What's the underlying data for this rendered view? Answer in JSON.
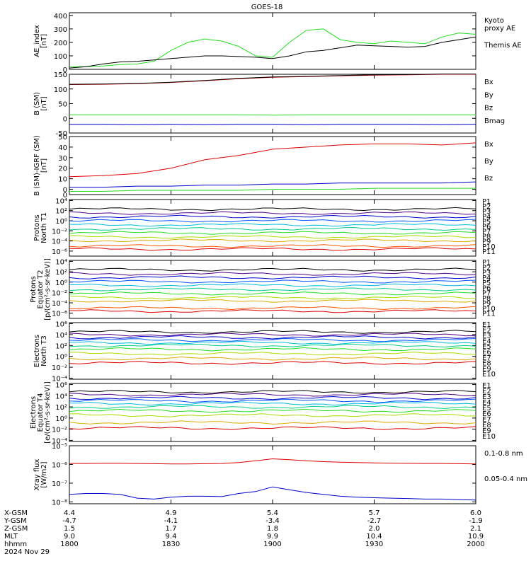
{
  "title": "GOES-18",
  "colors": {
    "green": "#22dd22",
    "black": "#000000",
    "red": "#dd0000",
    "blue": "#0000cc"
  },
  "chart_data": [
    {
      "type": "line",
      "id": "ae",
      "ylabel": "AE_index\n[nT]",
      "ylim": [
        0,
        420
      ],
      "yticks": [
        "0",
        "100",
        "200",
        "300",
        "400"
      ],
      "ytick_values": [
        0,
        100,
        200,
        300,
        400
      ],
      "x": [
        0,
        5,
        10,
        15,
        20,
        25,
        30,
        35,
        40,
        45,
        50,
        55,
        60,
        65,
        70,
        75,
        80,
        85,
        90,
        95,
        100,
        105,
        110,
        115,
        120
      ],
      "series": [
        {
          "name": "Kyoto\nproxy AE",
          "color": "#22dd22",
          "values": [
            20,
            20,
            25,
            35,
            40,
            60,
            140,
            200,
            225,
            210,
            170,
            100,
            90,
            200,
            290,
            300,
            220,
            200,
            190,
            210,
            200,
            190,
            240,
            270,
            260
          ]
        },
        {
          "name": "Themis AE",
          "color": "#000000",
          "values": [
            10,
            20,
            40,
            55,
            60,
            70,
            80,
            90,
            100,
            100,
            95,
            90,
            80,
            100,
            130,
            140,
            160,
            180,
            175,
            170,
            165,
            170,
            200,
            220,
            240
          ]
        }
      ]
    },
    {
      "type": "line",
      "id": "bsm",
      "ylabel": "B (SM)\n[nT]",
      "ylim": [
        -50,
        150
      ],
      "yticks": [
        "-50",
        "0",
        "50",
        "100",
        "150"
      ],
      "ytick_values": [
        -50,
        0,
        50,
        100,
        150
      ],
      "x": [
        0,
        10,
        20,
        30,
        40,
        50,
        60,
        70,
        80,
        90,
        100,
        110,
        120
      ],
      "series": [
        {
          "name": "Bx",
          "color": "#0000cc",
          "values": [
            -20,
            -20,
            -21,
            -20,
            -21,
            -20,
            -20,
            -21,
            -20,
            -20,
            -20,
            -21,
            -20
          ]
        },
        {
          "name": "By",
          "color": "#22dd22",
          "values": [
            12,
            12,
            12,
            12,
            12,
            12,
            11,
            12,
            12,
            12,
            12,
            12,
            12
          ]
        },
        {
          "name": "Bz",
          "color": "#dd0000",
          "values": [
            115,
            116,
            118,
            122,
            128,
            135,
            140,
            142,
            145,
            147,
            148,
            150,
            150
          ]
        },
        {
          "name": "Bmag",
          "color": "#000000",
          "values": [
            116,
            117,
            119,
            123,
            129,
            136,
            141,
            143,
            146,
            148,
            149,
            151,
            151
          ]
        }
      ]
    },
    {
      "type": "line",
      "id": "bigrf",
      "ylabel": "B (SM)-IGRF (SM)\n[nT]",
      "ylim": [
        -5,
        50
      ],
      "yticks": [
        "-0",
        "0",
        "10",
        "20",
        "30",
        "40",
        "50"
      ],
      "ytick_values": [
        -5,
        0,
        10,
        20,
        30,
        40,
        50
      ],
      "ytick_display": [
        "0",
        "0",
        "10",
        "20",
        "30",
        "40",
        "50"
      ],
      "x": [
        0,
        10,
        20,
        30,
        40,
        50,
        60,
        70,
        80,
        90,
        100,
        110,
        120
      ],
      "series": [
        {
          "name": "Bx",
          "color": "#0000cc",
          "values": [
            2,
            2,
            3,
            3,
            4,
            4,
            5,
            5,
            6,
            6,
            6,
            6,
            7
          ]
        },
        {
          "name": "By",
          "color": "#22dd22",
          "values": [
            -2,
            -2,
            -1,
            -1,
            -1,
            -1,
            0,
            0,
            0,
            1,
            1,
            1,
            1
          ]
        },
        {
          "name": "Bz",
          "color": "#dd0000",
          "values": [
            12,
            13,
            15,
            20,
            28,
            32,
            38,
            40,
            42,
            43,
            43,
            42,
            44
          ]
        }
      ]
    },
    {
      "type": "line",
      "id": "pn",
      "ylabel": "Protons\nNorth T1",
      "scale": "log",
      "yticks": [
        "10⁻⁶",
        "10⁻⁴",
        "10⁻²",
        "10⁰",
        "10²",
        "10⁴"
      ],
      "ytick_exp": [
        -6,
        -4,
        -2,
        0,
        2,
        4
      ],
      "ylim_exp": [
        -7,
        4.2
      ],
      "legend": [
        "P1",
        "P2",
        "P3",
        "P4",
        "P5",
        "P6",
        "P7",
        "P8",
        "P9",
        "P10",
        "P11"
      ],
      "legend_colors": [
        "#000000",
        "#550088",
        "#0000cc",
        "#0055ff",
        "#00bbdd",
        "#00cc88",
        "#22dd22",
        "#aadd00",
        "#ddaa00",
        "#ff5500",
        "#dd0000"
      ],
      "levels_exp": [
        2.3,
        1.5,
        0.8,
        0.0,
        -0.8,
        -1.6,
        -2.4,
        -3.2,
        -3.9,
        -5.0,
        -5.6
      ]
    },
    {
      "type": "line",
      "id": "pe",
      "ylabel": "Protons\nEquator T2\n[p/(cm²-s-sr-keV)]",
      "scale": "log",
      "yticks": [
        "10⁻⁶",
        "10⁻⁴",
        "10⁻²",
        "10⁰",
        "10²",
        "10⁴"
      ],
      "ytick_exp": [
        -6,
        -4,
        -2,
        0,
        2,
        4
      ],
      "ylim_exp": [
        -7,
        4.2
      ],
      "legend": [
        "P1",
        "P2",
        "P3",
        "P4",
        "P5",
        "P6",
        "P7",
        "P8",
        "P9",
        "P10",
        "P11"
      ],
      "legend_colors": [
        "#000000",
        "#550088",
        "#0000cc",
        "#0055ff",
        "#00bbdd",
        "#00cc88",
        "#22dd22",
        "#aadd00",
        "#ddaa00",
        "#ff5500",
        "#dd0000"
      ],
      "levels_exp": [
        2.4,
        1.6,
        0.9,
        0.1,
        -0.6,
        -1.4,
        -2.2,
        -3.0,
        -3.6,
        -5.0,
        -5.6
      ]
    },
    {
      "type": "line",
      "id": "en",
      "ylabel": "Electrons\nNorth T3",
      "scale": "log",
      "yticks": [
        "10⁻⁴",
        "10⁻²",
        "10⁰",
        "10²",
        "10⁴",
        "10⁶"
      ],
      "ytick_exp": [
        -4,
        -2,
        0,
        2,
        4,
        6
      ],
      "ylim_exp": [
        -4.2,
        6.2
      ],
      "legend": [
        "E1",
        "E2",
        "E3",
        "E4",
        "E5",
        "E6",
        "E7",
        "E8",
        "E9",
        "E10"
      ],
      "legend_colors": [
        "#000000",
        "#550088",
        "#0000cc",
        "#0055ff",
        "#00bbdd",
        "#00cc88",
        "#22dd22",
        "#aadd00",
        "#ddaa00",
        "#dd0000"
      ],
      "levels_exp": [
        4.5,
        4.0,
        3.5,
        3.0,
        2.5,
        2.0,
        1.3,
        0.5,
        -0.4,
        -1.2
      ]
    },
    {
      "type": "line",
      "id": "ee",
      "ylabel": "Electrons\nEquator T4\n[e/(cm²-s-sr-keV)]",
      "scale": "log",
      "yticks": [
        "10⁻⁴",
        "10⁻²",
        "10⁰",
        "10²",
        "10⁴",
        "10⁶"
      ],
      "ytick_exp": [
        -4,
        -2,
        0,
        2,
        4,
        6
      ],
      "ylim_exp": [
        -4.2,
        6.2
      ],
      "legend": [
        "E1",
        "E2",
        "E3",
        "E4",
        "E5",
        "E6",
        "E7",
        "E8",
        "E9",
        "E10"
      ],
      "legend_colors": [
        "#000000",
        "#550088",
        "#0000cc",
        "#0055ff",
        "#00bbdd",
        "#00cc88",
        "#22dd22",
        "#aadd00",
        "#ddaa00",
        "#dd0000"
      ],
      "levels_exp": [
        4.7,
        4.2,
        3.6,
        3.1,
        2.6,
        2.0,
        1.3,
        0.5,
        -0.8,
        -1.8
      ]
    },
    {
      "type": "line",
      "id": "xray",
      "ylabel": "Xray flux\n[W/m2]",
      "scale": "log",
      "yticks": [
        "10⁻⁸",
        "10⁻⁷",
        "10⁻⁶",
        "10⁻⁵"
      ],
      "ytick_exp": [
        -8,
        -7,
        -6,
        -5
      ],
      "ylim_exp": [
        -8.1,
        -5
      ],
      "x": [
        0,
        5,
        10,
        15,
        20,
        25,
        30,
        35,
        40,
        45,
        50,
        55,
        60,
        65,
        70,
        75,
        80,
        85,
        90,
        95,
        100,
        105,
        110,
        115,
        120
      ],
      "series": [
        {
          "name": "0.1-0.8 nm",
          "color": "#dd0000",
          "values_exp": [
            -5.95,
            -5.95,
            -5.94,
            -5.94,
            -5.95,
            -5.96,
            -5.97,
            -5.97,
            -5.96,
            -5.95,
            -5.9,
            -5.8,
            -5.7,
            -5.75,
            -5.8,
            -5.85,
            -5.88,
            -5.9,
            -5.92,
            -5.93,
            -5.94,
            -5.95,
            -5.95,
            -5.96,
            -5.97
          ]
        },
        {
          "name": "0.05-0.4 nm",
          "color": "#0000cc",
          "values_exp": [
            -7.6,
            -7.55,
            -7.55,
            -7.6,
            -7.8,
            -7.85,
            -7.75,
            -7.7,
            -7.7,
            -7.72,
            -7.55,
            -7.45,
            -7.2,
            -7.35,
            -7.5,
            -7.6,
            -7.7,
            -7.75,
            -7.78,
            -7.8,
            -7.82,
            -7.85,
            -7.85,
            -7.88,
            -7.9
          ]
        }
      ]
    }
  ],
  "xaxis": {
    "row_labels": [
      "X-GSM",
      "Y-GSM",
      "Z-GSM",
      "MLT",
      "hhmm",
      "2024 Nov 29"
    ],
    "columns": [
      [
        "4.4",
        "-4.7",
        "1.5",
        "9.0",
        "1800"
      ],
      [
        "4.9",
        "-4.1",
        "1.7",
        "9.4",
        "1830"
      ],
      [
        "5.4",
        "-3.4",
        "1.8",
        "9.9",
        "1900"
      ],
      [
        "5.7",
        "-2.7",
        "2.0",
        "10.4",
        "1930"
      ],
      [
        "6.0",
        "-1.9",
        "2.1",
        "10.9",
        "2000"
      ]
    ]
  }
}
